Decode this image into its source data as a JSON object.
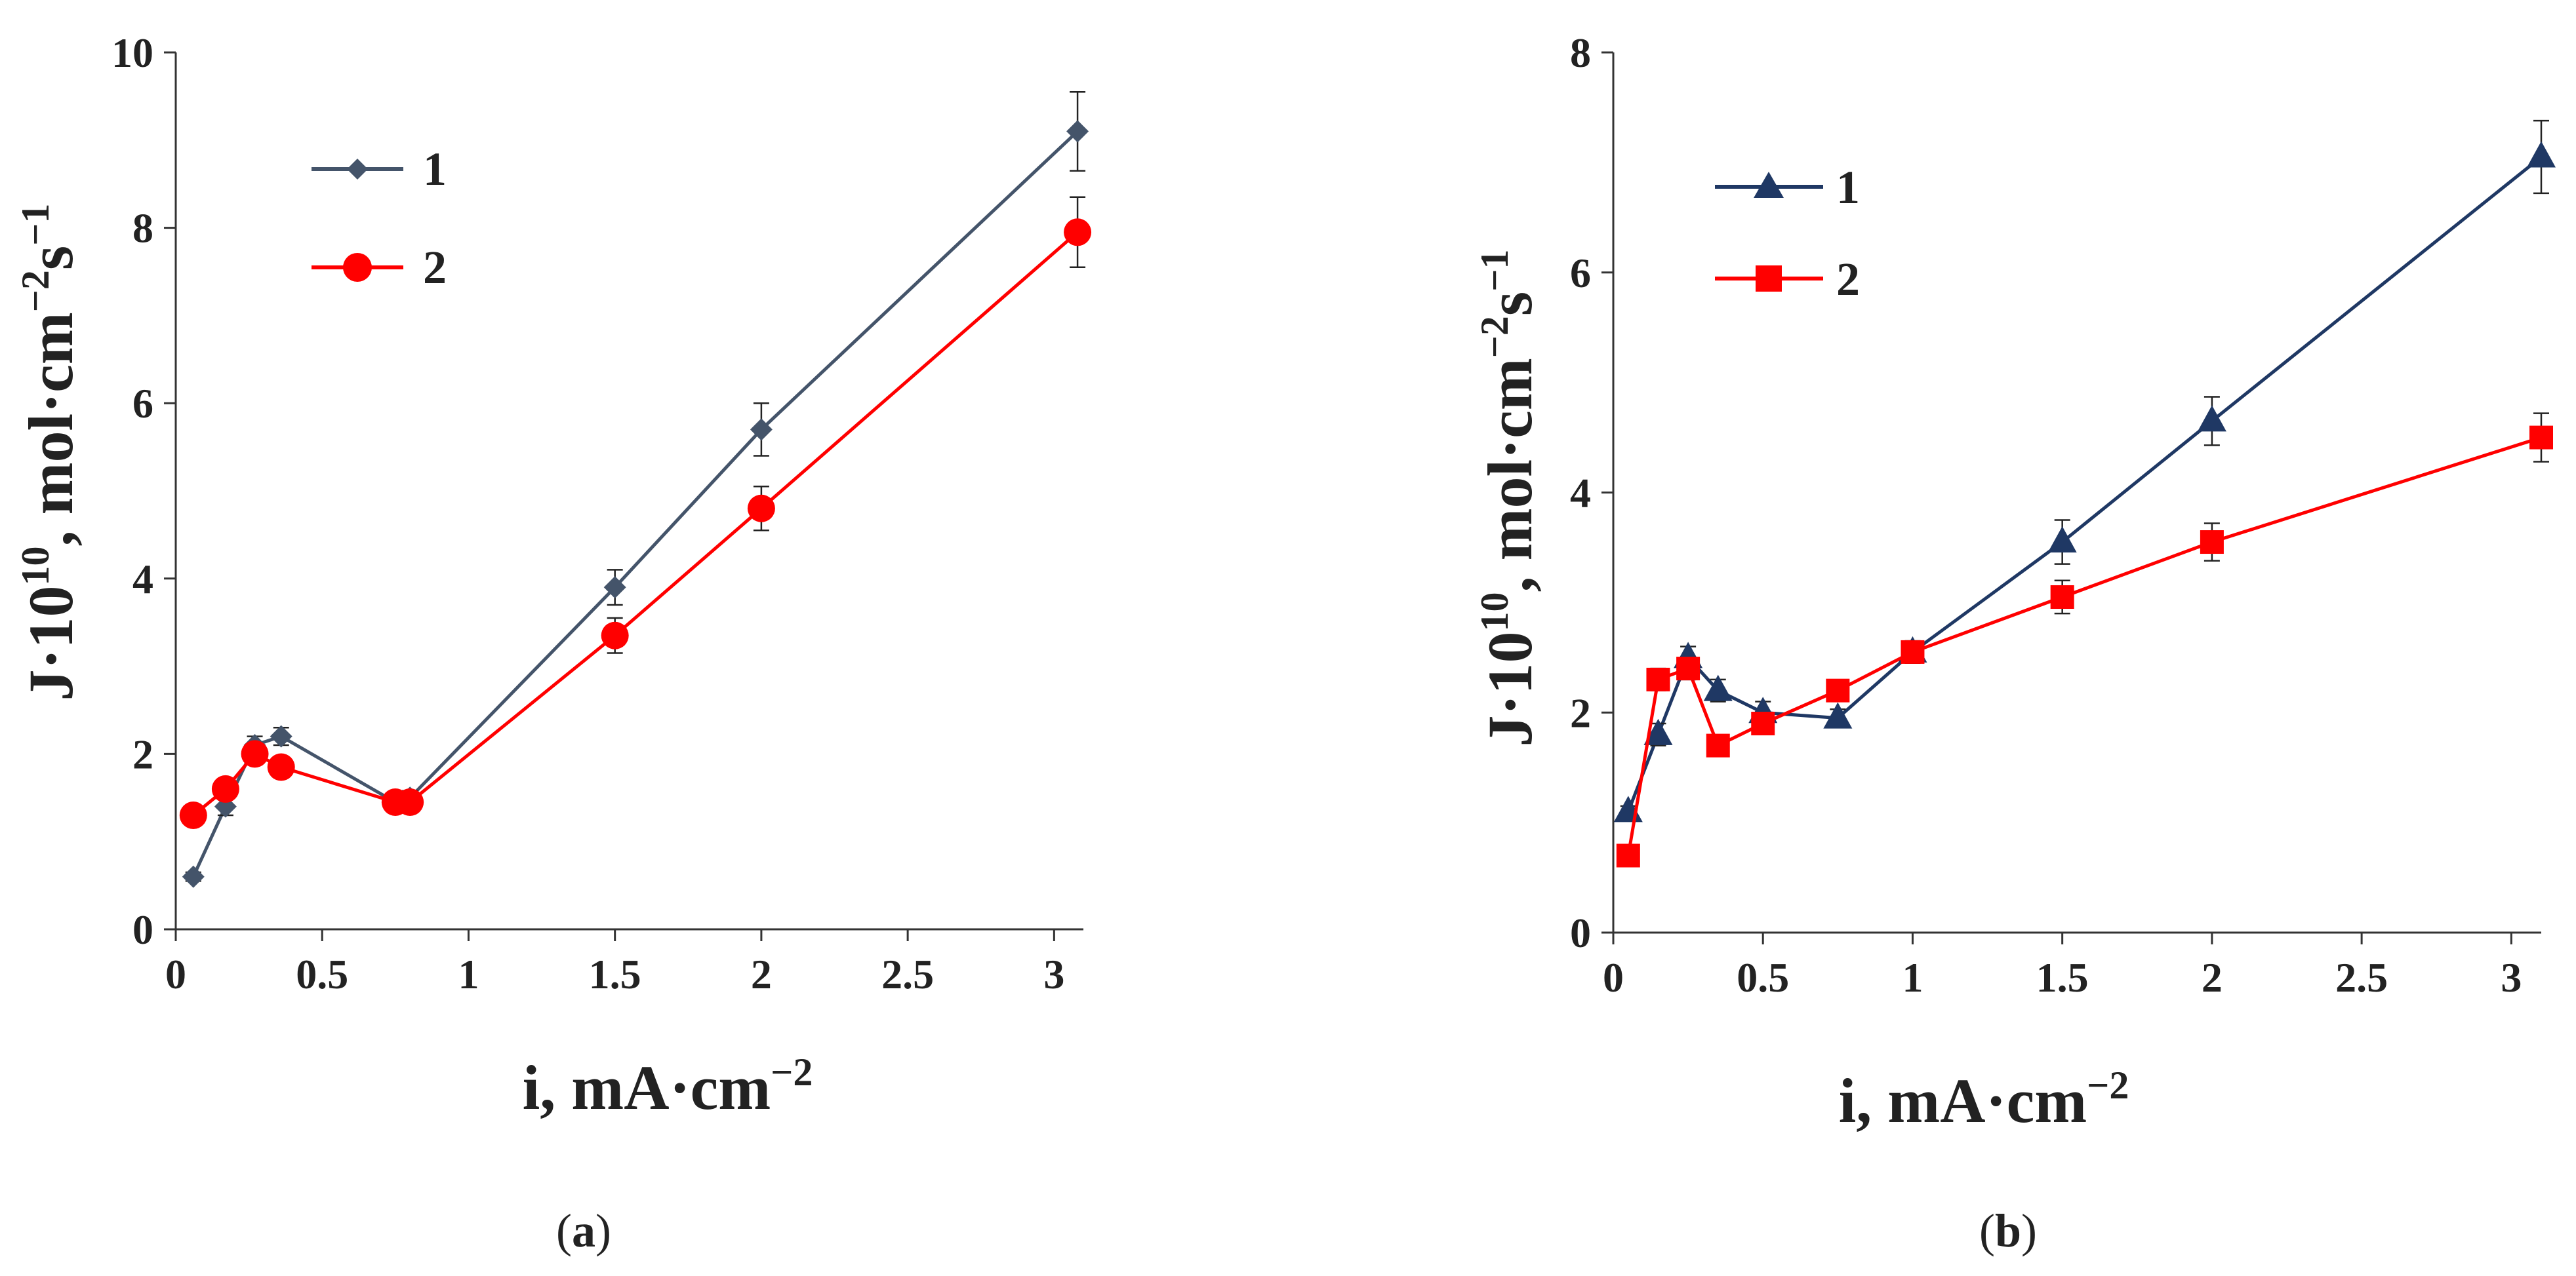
{
  "chart_data": [
    {
      "id": "a",
      "type": "line",
      "panel_label": {
        "open": "(",
        "letter": "a",
        "close": ")"
      },
      "ylabel": {
        "prefix": "J·10",
        "exp": "10",
        "mid": ", mol·cm",
        "exp2": "−2",
        "s": "s",
        "exp3": "−1"
      },
      "xlabel": {
        "text": "i, mA·cm",
        "exp": "−2"
      },
      "xlim": [
        0,
        3.1
      ],
      "ylim": [
        0,
        10
      ],
      "xticks": [
        0,
        0.5,
        1,
        1.5,
        2,
        2.5,
        3
      ],
      "xtick_labels": [
        "0",
        "0.5",
        "1",
        "1.5",
        "2",
        "2.5",
        "3"
      ],
      "yticks": [
        0,
        2,
        4,
        6,
        8,
        10
      ],
      "ytick_labels": [
        "0",
        "2",
        "4",
        "6",
        "8",
        "10"
      ],
      "legend_position": "top-left",
      "series": [
        {
          "name": "1",
          "color": "#44546a",
          "marker": "diamond",
          "x": [
            0.06,
            0.17,
            0.27,
            0.36,
            0.75,
            0.8,
            1.5,
            2.0,
            3.08
          ],
          "y": [
            0.6,
            1.4,
            2.1,
            2.2,
            1.45,
            1.5,
            3.9,
            5.7,
            9.1
          ],
          "err": [
            0.05,
            0.1,
            0.1,
            0.1,
            0.08,
            0.08,
            0.2,
            0.3,
            0.45
          ]
        },
        {
          "name": "2",
          "color": "#ff0000",
          "marker": "circle",
          "x": [
            0.06,
            0.17,
            0.27,
            0.36,
            0.75,
            0.8,
            1.5,
            2.0,
            3.08
          ],
          "y": [
            1.3,
            1.6,
            2.0,
            1.85,
            1.45,
            1.45,
            3.35,
            4.8,
            7.95
          ],
          "err": [
            0.05,
            0.1,
            0.1,
            0.1,
            0.08,
            0.08,
            0.2,
            0.25,
            0.4
          ]
        }
      ]
    },
    {
      "id": "b",
      "type": "line",
      "panel_label": {
        "open": "(",
        "letter": "b",
        "close": ")"
      },
      "ylabel": {
        "prefix": "J·10",
        "exp": "10",
        "mid": ", mol·cm",
        "exp2": "−2",
        "s": "s",
        "exp3": "−1"
      },
      "xlabel": {
        "text": "i, mA·cm",
        "exp": "−2"
      },
      "xlim": [
        0,
        3.1
      ],
      "ylim": [
        0,
        8
      ],
      "xticks": [
        0,
        0.5,
        1,
        1.5,
        2,
        2.5,
        3
      ],
      "xtick_labels": [
        "0",
        "0.5",
        "1",
        "1.5",
        "2",
        "2.5",
        "3"
      ],
      "yticks": [
        0,
        2,
        4,
        6,
        8
      ],
      "ytick_labels": [
        "0",
        "2",
        "4",
        "6",
        "8"
      ],
      "legend_position": "top-left",
      "series": [
        {
          "name": "1",
          "color": "#1f3864",
          "marker": "triangle",
          "x": [
            0.05,
            0.15,
            0.25,
            0.35,
            0.5,
            0.75,
            1.0,
            1.5,
            2.0,
            3.1
          ],
          "y": [
            1.1,
            1.8,
            2.5,
            2.2,
            2.0,
            1.95,
            2.55,
            3.55,
            4.65,
            7.05
          ],
          "err": [
            0.05,
            0.1,
            0.1,
            0.1,
            0.1,
            0.08,
            0.1,
            0.2,
            0.22,
            0.33
          ]
        },
        {
          "name": "2",
          "color": "#ff0000",
          "marker": "square",
          "x": [
            0.05,
            0.15,
            0.25,
            0.35,
            0.5,
            0.75,
            1.0,
            1.5,
            2.0,
            3.1
          ],
          "y": [
            0.7,
            2.3,
            2.4,
            1.7,
            1.9,
            2.2,
            2.55,
            3.05,
            3.55,
            4.5
          ],
          "err": [
            0.05,
            0.1,
            0.1,
            0.08,
            0.08,
            0.08,
            0.1,
            0.15,
            0.17,
            0.22
          ]
        }
      ]
    }
  ]
}
